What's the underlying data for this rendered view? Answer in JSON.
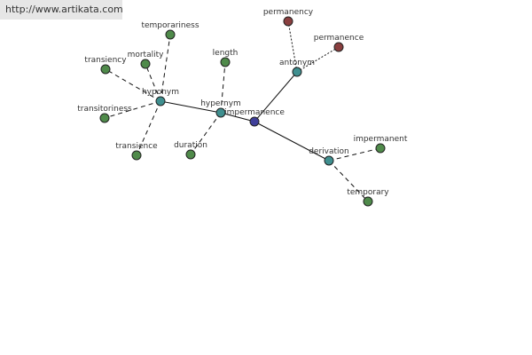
{
  "header": {
    "url": "http://www.artikata.com"
  },
  "nodes": [
    {
      "label": "impermanence"
    },
    {
      "label": "hypernym"
    },
    {
      "label": "hyponym"
    },
    {
      "label": "antonym"
    },
    {
      "label": "derivation"
    },
    {
      "label": "temporariness"
    },
    {
      "label": "transiency"
    },
    {
      "label": "mortality"
    },
    {
      "label": "transitoriness"
    },
    {
      "label": "transience"
    },
    {
      "label": "length"
    },
    {
      "label": "duration"
    },
    {
      "label": "permanency"
    },
    {
      "label": "permanence"
    },
    {
      "label": "impermanent"
    },
    {
      "label": "temporary"
    }
  ]
}
